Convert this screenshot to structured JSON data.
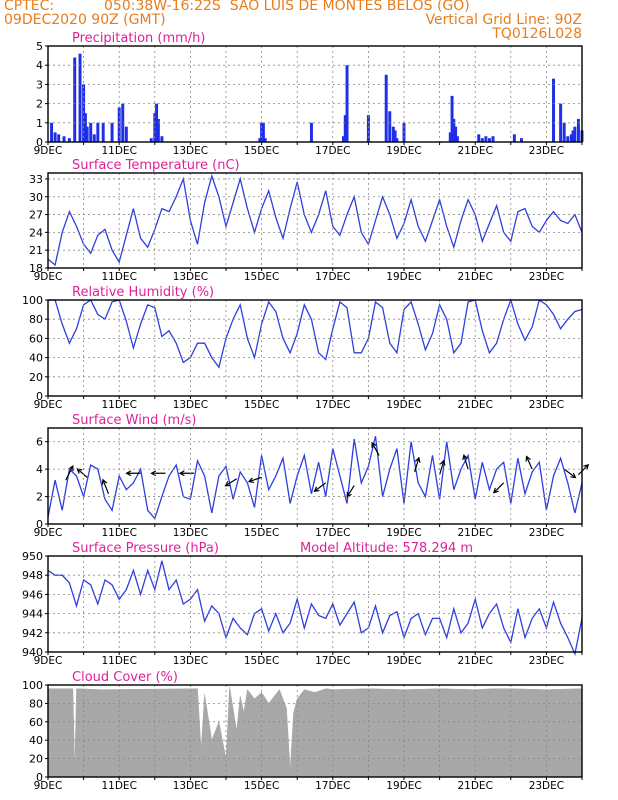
{
  "header": {
    "source": "CPTEC:",
    "location": "050:38W-16:22S  SAO LUIS DE MONTES BELOS (GO)",
    "datetime": "09DEC2020 90Z (GMT)",
    "grid_line": "Vertical Grid Line: 90Z",
    "code": "TQ0126L028"
  },
  "colors": {
    "header": "#e87d1c",
    "title": "#e0209a",
    "line": "#2d3fe0",
    "bar": "#1f2ee8",
    "cloud": "#a8a8a8",
    "grid": "#888888"
  },
  "x_ticks": [
    "9DEC",
    "11DEC",
    "13DEC",
    "15DEC",
    "17DEC",
    "19DEC",
    "21DEC",
    "23DEC"
  ],
  "chart_data": [
    {
      "id": "precip",
      "type": "bar",
      "title": "Precipitation (mm/h)",
      "ylim": [
        0,
        5
      ],
      "yticks": [
        0,
        1,
        2,
        3,
        4,
        5
      ],
      "x": [
        0.1,
        0.2,
        0.3,
        0.45,
        0.6,
        0.75,
        0.9,
        1.0,
        1.05,
        1.1,
        1.2,
        1.3,
        1.4,
        1.55,
        1.8,
        2.0,
        2.1,
        2.2,
        2.9,
        3.0,
        3.05,
        3.1,
        3.2,
        5.95,
        6.0,
        6.05,
        6.1,
        7.4,
        8.3,
        8.35,
        8.4,
        9.0,
        9.5,
        9.6,
        9.7,
        9.75,
        9.8,
        10.0,
        11.3,
        11.35,
        11.4,
        11.45,
        11.5,
        12.1,
        12.2,
        12.3,
        12.4,
        12.5,
        13.1,
        13.3,
        14.2,
        14.4,
        14.5,
        14.6,
        14.7,
        14.75,
        14.8,
        14.9,
        15.0
      ],
      "values": [
        1.0,
        0.5,
        0.4,
        0.3,
        0.2,
        4.4,
        4.6,
        3.0,
        1.5,
        0.8,
        1.0,
        0.4,
        1.0,
        1.0,
        1.0,
        1.8,
        2.0,
        0.8,
        0.2,
        1.5,
        2.0,
        1.2,
        0.3,
        0.2,
        1.0,
        1.0,
        0.2,
        1.0,
        0.3,
        1.4,
        4.0,
        1.4,
        3.5,
        1.6,
        0.8,
        0.6,
        0.2,
        1.0,
        0.5,
        2.4,
        1.2,
        0.8,
        0.3,
        0.4,
        0.2,
        0.3,
        0.2,
        0.3,
        0.4,
        0.2,
        3.3,
        2.0,
        1.0,
        0.3,
        0.4,
        0.6,
        0.8,
        1.2,
        0.6
      ]
    },
    {
      "id": "temp",
      "type": "line",
      "title": "Surface Temperature (nC)",
      "ylim": [
        18,
        34
      ],
      "yticks": [
        18,
        21,
        24,
        27,
        30,
        33
      ],
      "x": [
        0,
        0.2,
        0.4,
        0.6,
        0.8,
        1.0,
        1.2,
        1.4,
        1.6,
        1.8,
        2.0,
        2.2,
        2.4,
        2.6,
        2.8,
        3.0,
        3.2,
        3.4,
        3.6,
        3.8,
        4.0,
        4.2,
        4.4,
        4.6,
        4.8,
        5.0,
        5.2,
        5.4,
        5.6,
        5.8,
        6.0,
        6.2,
        6.4,
        6.6,
        6.8,
        7.0,
        7.2,
        7.4,
        7.6,
        7.8,
        8.0,
        8.2,
        8.4,
        8.6,
        8.8,
        9.0,
        9.2,
        9.4,
        9.6,
        9.8,
        10.0,
        10.2,
        10.4,
        10.6,
        10.8,
        11.0,
        11.2,
        11.4,
        11.6,
        11.8,
        12.0,
        12.2,
        12.4,
        12.6,
        12.8,
        13.0,
        13.2,
        13.4,
        13.6,
        13.8,
        14.0,
        14.2,
        14.4,
        14.6,
        14.8,
        15.0
      ],
      "values": [
        19.5,
        18.5,
        24,
        27.5,
        25,
        22,
        20.5,
        23.5,
        24.5,
        21,
        19,
        23.5,
        28,
        23,
        21.5,
        24.5,
        28,
        27.5,
        30,
        33,
        26,
        22,
        29,
        33.5,
        30,
        25,
        29,
        33,
        28,
        24,
        28,
        31,
        26.5,
        23,
        28,
        32.5,
        27,
        24,
        27,
        31,
        25,
        23.5,
        27,
        30,
        24,
        22,
        26,
        30,
        27,
        23,
        25.5,
        29.5,
        25,
        22.5,
        26,
        29.5,
        25,
        21.5,
        26,
        29.5,
        27,
        22.5,
        25.5,
        28.5,
        24,
        22.5,
        27.5,
        28,
        25,
        24,
        26,
        27.5,
        26,
        25.5,
        27,
        24
      ]
    },
    {
      "id": "rh",
      "type": "line",
      "title": "Relative Humidity (%)",
      "ylim": [
        0,
        100
      ],
      "yticks": [
        0,
        20,
        40,
        60,
        80,
        100
      ],
      "x": [
        0,
        0.2,
        0.4,
        0.6,
        0.8,
        1.0,
        1.2,
        1.4,
        1.6,
        1.8,
        2.0,
        2.2,
        2.4,
        2.6,
        2.8,
        3.0,
        3.2,
        3.4,
        3.6,
        3.8,
        4.0,
        4.2,
        4.4,
        4.6,
        4.8,
        5.0,
        5.2,
        5.4,
        5.6,
        5.8,
        6.0,
        6.2,
        6.4,
        6.6,
        6.8,
        7.0,
        7.2,
        7.4,
        7.6,
        7.8,
        8.0,
        8.2,
        8.4,
        8.6,
        8.8,
        9.0,
        9.2,
        9.4,
        9.6,
        9.8,
        10.0,
        10.2,
        10.4,
        10.6,
        10.8,
        11.0,
        11.2,
        11.4,
        11.6,
        11.8,
        12.0,
        12.2,
        12.4,
        12.6,
        12.8,
        13.0,
        13.2,
        13.4,
        13.6,
        13.8,
        14.0,
        14.2,
        14.4,
        14.6,
        14.8,
        15.0
      ],
      "values": [
        100,
        100,
        75,
        55,
        70,
        95,
        100,
        85,
        80,
        98,
        100,
        78,
        50,
        75,
        95,
        92,
        62,
        68,
        55,
        35,
        40,
        55,
        55,
        40,
        30,
        60,
        80,
        95,
        60,
        40,
        75,
        98,
        88,
        60,
        45,
        65,
        95,
        80,
        45,
        38,
        70,
        98,
        92,
        45,
        45,
        60,
        98,
        92,
        55,
        45,
        90,
        98,
        75,
        48,
        65,
        95,
        80,
        45,
        55,
        98,
        100,
        68,
        45,
        55,
        80,
        100,
        75,
        58,
        72,
        100,
        95,
        85,
        70,
        80,
        88,
        90
      ]
    },
    {
      "id": "wind",
      "type": "line",
      "title": "Surface Wind (m/s)",
      "ylim": [
        0,
        7
      ],
      "yticks": [
        0,
        2,
        4,
        6
      ],
      "x": [
        0,
        0.2,
        0.4,
        0.6,
        0.8,
        1.0,
        1.2,
        1.4,
        1.6,
        1.8,
        2.0,
        2.2,
        2.4,
        2.6,
        2.8,
        3.0,
        3.2,
        3.4,
        3.6,
        3.8,
        4.0,
        4.2,
        4.4,
        4.6,
        4.8,
        5.0,
        5.2,
        5.4,
        5.6,
        5.8,
        6.0,
        6.2,
        6.4,
        6.6,
        6.8,
        7.0,
        7.2,
        7.4,
        7.6,
        7.8,
        8.0,
        8.2,
        8.4,
        8.6,
        8.8,
        9.0,
        9.2,
        9.4,
        9.6,
        9.8,
        10.0,
        10.2,
        10.4,
        10.6,
        10.8,
        11.0,
        11.2,
        11.4,
        11.6,
        11.8,
        12.0,
        12.2,
        12.4,
        12.6,
        12.8,
        13.0,
        13.2,
        13.4,
        13.6,
        13.8,
        14.0,
        14.2,
        14.4,
        14.6,
        14.8,
        15.0
      ],
      "values": [
        0.5,
        3.2,
        1.0,
        4.0,
        3.5,
        2.0,
        4.3,
        4.0,
        1.8,
        1.0,
        3.5,
        2.5,
        3.0,
        4.0,
        1.0,
        0.4,
        2.0,
        3.5,
        4.3,
        2.0,
        1.8,
        4.6,
        3.5,
        0.8,
        3.5,
        4.2,
        1.8,
        3.8,
        3.0,
        1.2,
        5.0,
        2.5,
        3.5,
        4.8,
        1.5,
        3.5,
        5.0,
        2.2,
        4.5,
        2.0,
        5.5,
        3.5,
        1.5,
        6.2,
        3.0,
        4.2,
        6.4,
        2.0,
        4.0,
        5.5,
        1.5,
        6.0,
        3.0,
        2.0,
        5.0,
        1.8,
        6.0,
        2.5,
        4.0,
        5.0,
        1.8,
        4.5,
        2.5,
        4.0,
        4.5,
        1.5,
        4.8,
        2.2,
        3.8,
        4.5,
        1.0,
        3.5,
        4.8,
        3.0,
        0.8,
        3.0
      ],
      "arrows": [
        {
          "x": 0.5,
          "y": 3.2,
          "dx": 0.5,
          "dy": 1.0
        },
        {
          "x": 1.1,
          "y": 3.4,
          "dx": -0.7,
          "dy": 0.6
        },
        {
          "x": 1.7,
          "y": 2.2,
          "dx": -0.4,
          "dy": 1.0
        },
        {
          "x": 2.6,
          "y": 3.7,
          "dx": -1.0,
          "dy": 0.0
        },
        {
          "x": 3.3,
          "y": 3.7,
          "dx": -1.0,
          "dy": 0.0
        },
        {
          "x": 4.1,
          "y": 3.7,
          "dx": -1.0,
          "dy": 0.0
        },
        {
          "x": 5.3,
          "y": 3.3,
          "dx": -0.8,
          "dy": -0.5
        },
        {
          "x": 6.0,
          "y": 3.4,
          "dx": -0.9,
          "dy": -0.3
        },
        {
          "x": 7.8,
          "y": 3.0,
          "dx": -0.8,
          "dy": -0.6
        },
        {
          "x": 8.6,
          "y": 2.8,
          "dx": -0.5,
          "dy": -0.8
        },
        {
          "x": 9.3,
          "y": 5.0,
          "dx": -0.5,
          "dy": 0.9
        },
        {
          "x": 10.3,
          "y": 3.8,
          "dx": 0.3,
          "dy": 1.0
        },
        {
          "x": 11.0,
          "y": 3.6,
          "dx": 0.3,
          "dy": 1.0
        },
        {
          "x": 11.8,
          "y": 4.0,
          "dx": -0.3,
          "dy": 1.0
        },
        {
          "x": 12.8,
          "y": 3.0,
          "dx": -0.7,
          "dy": -0.7
        },
        {
          "x": 13.6,
          "y": 4.0,
          "dx": -0.4,
          "dy": 0.9
        },
        {
          "x": 14.5,
          "y": 4.0,
          "dx": 0.8,
          "dy": -0.6
        },
        {
          "x": 14.9,
          "y": 3.6,
          "dx": 0.7,
          "dy": 0.7
        }
      ]
    },
    {
      "id": "pres",
      "type": "line",
      "title": "Surface Pressure (hPa)",
      "annotation": "Model Altitude: 578.294 m",
      "ylim": [
        940,
        950
      ],
      "yticks": [
        940,
        942,
        944,
        946,
        948,
        950
      ],
      "x": [
        0,
        0.2,
        0.4,
        0.6,
        0.8,
        1.0,
        1.2,
        1.4,
        1.6,
        1.8,
        2.0,
        2.2,
        2.4,
        2.6,
        2.8,
        3.0,
        3.2,
        3.4,
        3.6,
        3.8,
        4.0,
        4.2,
        4.4,
        4.6,
        4.8,
        5.0,
        5.2,
        5.4,
        5.6,
        5.8,
        6.0,
        6.2,
        6.4,
        6.6,
        6.8,
        7.0,
        7.2,
        7.4,
        7.6,
        7.8,
        8.0,
        8.2,
        8.4,
        8.6,
        8.8,
        9.0,
        9.2,
        9.4,
        9.6,
        9.8,
        10.0,
        10.2,
        10.4,
        10.6,
        10.8,
        11.0,
        11.2,
        11.4,
        11.6,
        11.8,
        12.0,
        12.2,
        12.4,
        12.6,
        12.8,
        13.0,
        13.2,
        13.4,
        13.6,
        13.8,
        14.0,
        14.2,
        14.4,
        14.6,
        14.8,
        15.0
      ],
      "values": [
        948.5,
        948.0,
        948.0,
        947.2,
        944.8,
        947.5,
        947.0,
        945.0,
        947.5,
        947.0,
        945.5,
        946.5,
        948.5,
        946.0,
        948.5,
        946.5,
        949.5,
        946.5,
        947.5,
        945.0,
        945.5,
        946.5,
        943.2,
        944.8,
        944.0,
        941.5,
        943.5,
        942.5,
        941.8,
        944.0,
        944.5,
        942.2,
        944.0,
        942.0,
        943.0,
        945.5,
        942.5,
        945.0,
        943.8,
        943.5,
        945.0,
        942.8,
        944.0,
        945.2,
        942.0,
        942.5,
        944.8,
        942.0,
        943.8,
        944.2,
        941.5,
        943.5,
        944.0,
        941.8,
        943.5,
        943.5,
        941.5,
        944.5,
        942.0,
        943.0,
        945.5,
        942.5,
        944.0,
        945.0,
        942.5,
        941.0,
        944.5,
        941.5,
        943.5,
        944.5,
        942.5,
        945.2,
        943.0,
        941.5,
        939.8,
        943.5
      ]
    },
    {
      "id": "cloud",
      "type": "area",
      "title": "Cloud Cover (%)",
      "ylim": [
        0,
        100
      ],
      "yticks": [
        0,
        20,
        40,
        60,
        80,
        100
      ],
      "x": [
        0,
        0.7,
        0.75,
        0.8,
        1.5,
        4.2,
        4.3,
        4.4,
        4.6,
        4.8,
        5.0,
        5.1,
        5.3,
        5.4,
        5.5,
        5.6,
        5.8,
        6.0,
        6.2,
        6.5,
        6.7,
        6.8,
        6.9,
        7.0,
        7.1,
        7.2,
        7.5,
        7.8,
        8.0,
        9.0,
        10.0,
        11.0,
        12.0,
        12.5,
        13.0,
        14.0,
        15.0
      ],
      "values": [
        96,
        96,
        8,
        96,
        95,
        96,
        30,
        90,
        40,
        60,
        20,
        98,
        50,
        88,
        70,
        95,
        85,
        92,
        80,
        95,
        75,
        8,
        70,
        85,
        90,
        95,
        92,
        96,
        95,
        96,
        95,
        96,
        95,
        96,
        96,
        95,
        96
      ]
    }
  ]
}
